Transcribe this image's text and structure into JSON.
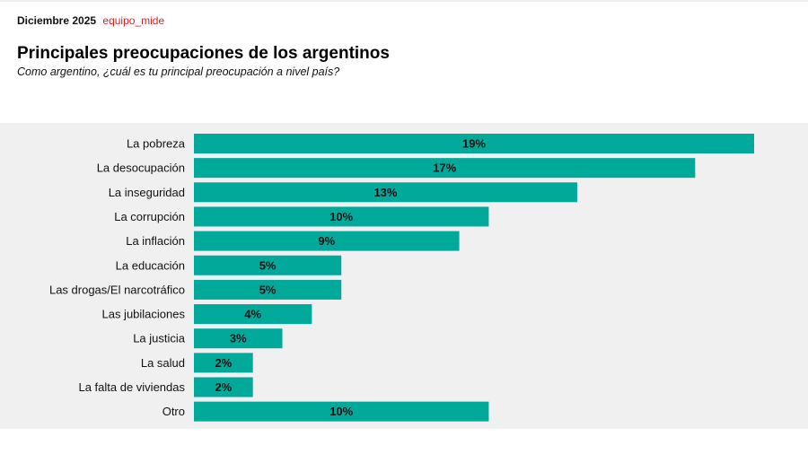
{
  "header": {
    "date": "Diciembre 2025",
    "brand": "equipo_mide"
  },
  "chart_data": {
    "type": "bar",
    "orientation": "horizontal",
    "title": "Principales preocupaciones de los argentinos",
    "subtitle": "Como argentino, ¿cuál es tu principal preocupación a nivel país?",
    "categories": [
      "La pobreza",
      "La desocupación",
      "La inseguridad",
      "La corrupción",
      "La inflación",
      "La educación",
      "Las drogas/El narcotráfico",
      "Las jubilaciones",
      "La justicia",
      "La salud",
      "La falta de viviendas",
      "Otro"
    ],
    "values": [
      19,
      17,
      13,
      10,
      9,
      5,
      5,
      4,
      3,
      2,
      2,
      10
    ],
    "labels": [
      "19%",
      "17%",
      "13%",
      "10%",
      "9%",
      "5%",
      "5%",
      "4%",
      "3%",
      "2%",
      "2%",
      "10%"
    ],
    "unit": "%",
    "xlim": [
      0,
      19
    ],
    "grid": false,
    "bar_color": "#00a99a"
  }
}
